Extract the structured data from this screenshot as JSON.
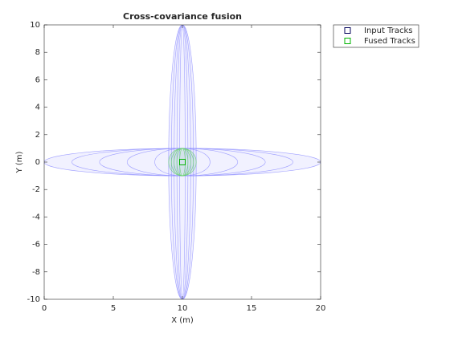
{
  "chart_data": {
    "type": "scatter",
    "title": "Cross-covariance fusion",
    "xlabel": "X (m)",
    "ylabel": "Y (m)",
    "xlim": [
      0,
      20
    ],
    "ylim": [
      -10,
      10
    ],
    "xticks": [
      0,
      5,
      10,
      15,
      20
    ],
    "yticks": [
      -10,
      -8,
      -6,
      -4,
      -2,
      0,
      2,
      4,
      6,
      8,
      10
    ],
    "legend": "outside-top-right",
    "series": [
      {
        "name": "Input Tracks",
        "color": "#00005a",
        "ellipse_color": "#8c8cff",
        "x": [
          10,
          10
        ],
        "y": [
          0,
          0
        ],
        "rx": [
          10,
          1
        ],
        "ry": [
          1,
          10
        ]
      },
      {
        "name": "Fused Tracks",
        "color": "#00b400",
        "ellipse_color": "#5ad25a",
        "x": [
          10
        ],
        "y": [
          0
        ],
        "rx": [
          1
        ],
        "ry": [
          1
        ]
      }
    ]
  }
}
